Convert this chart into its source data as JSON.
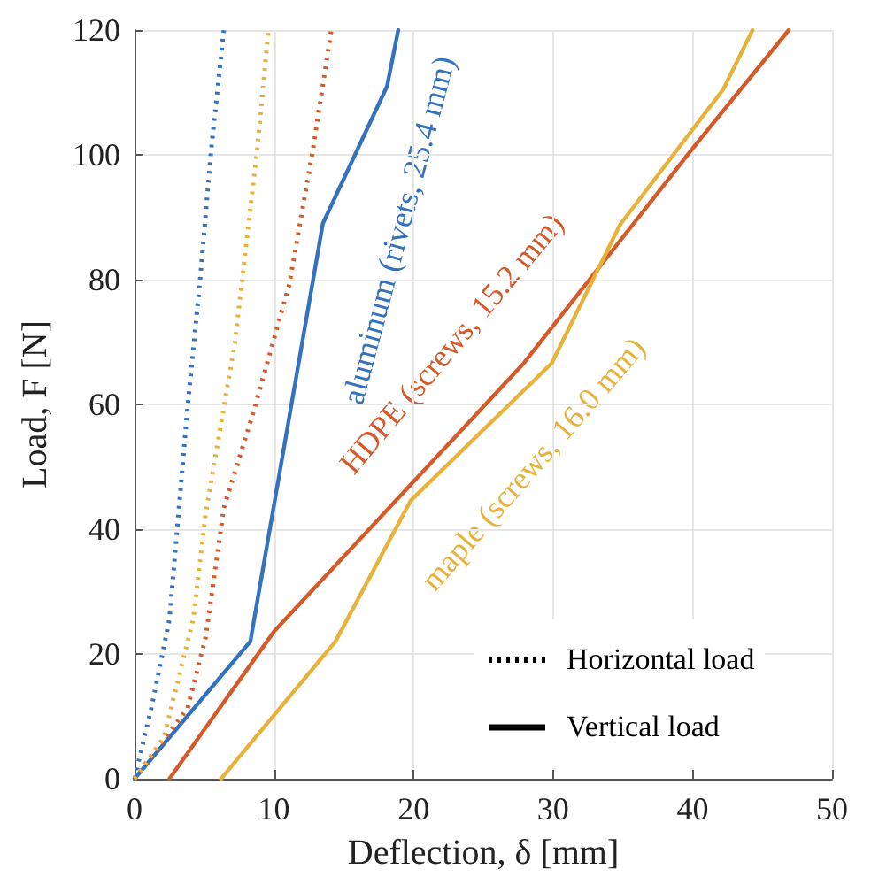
{
  "chart_data": {
    "type": "line",
    "xlabel": "Deflection, δ [mm]",
    "ylabel": "Load, F [N]",
    "xlim": [
      0,
      50
    ],
    "ylim": [
      0,
      120
    ],
    "xticks": [
      0,
      10,
      20,
      30,
      40,
      50
    ],
    "yticks": [
      0,
      20,
      40,
      60,
      80,
      100,
      120
    ],
    "grid": true,
    "marker": "none",
    "series": [
      {
        "name": "aluminum (rivets, 25.4 mm)",
        "color": "#3472bd",
        "line_style": "solid",
        "x": [
          0,
          8.3,
          13.5,
          18.1,
          18.9
        ],
        "values": [
          0,
          22,
          89,
          111,
          120
        ]
      },
      {
        "name": "HDPE (screws, 15.2 mm)",
        "color": "#d45a2a",
        "line_style": "solid",
        "x": [
          2.5,
          10,
          27.9,
          40,
          46.9
        ],
        "values": [
          0,
          23.6,
          66.6,
          101,
          120
        ]
      },
      {
        "name": "maple (screws, 16.0 mm)",
        "color": "#e8b23a",
        "line_style": "solid",
        "x": [
          6.2,
          14.4,
          19.8,
          29.9,
          34.8,
          42.2,
          44.3
        ],
        "values": [
          0,
          22,
          44.6,
          66.6,
          88.8,
          110.5,
          120
        ]
      },
      {
        "color": "#3472bd",
        "line_style": "dotted",
        "x": [
          0,
          1.2,
          2.5,
          3.8,
          4.7,
          5.5,
          6.4
        ],
        "values": [
          0,
          11.3,
          25.5,
          59.5,
          80,
          101,
          120
        ]
      },
      {
        "color": "#d45a2a",
        "line_style": "dotted",
        "x": [
          0,
          3.8,
          5.1,
          6.4,
          8.5,
          11.1,
          12.8,
          14.1
        ],
        "values": [
          0,
          11.3,
          22.7,
          43.4,
          58.6,
          79.3,
          101,
          120
        ]
      },
      {
        "color": "#e8b23a",
        "line_style": "dotted",
        "x": [
          0,
          2.1,
          4.2,
          5.1,
          7.2,
          8.8,
          9.6
        ],
        "values": [
          0,
          6.6,
          25.5,
          42.5,
          70,
          101,
          120
        ]
      }
    ],
    "annotations": [
      "Horizontal load",
      "Vertical load"
    ]
  }
}
